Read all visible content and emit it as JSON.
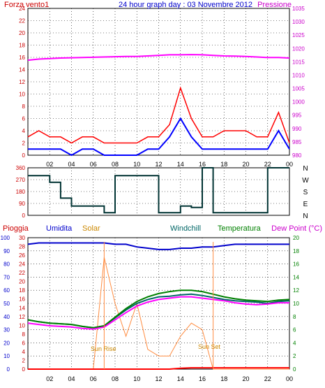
{
  "chart_data": [
    {
      "type": "line",
      "title": "24 hour graph day : 03 Novembre 2012",
      "left_axis_label": "Forza vento1",
      "right_axis_label": "Pressione",
      "left_ylim": [
        0,
        24
      ],
      "left_ticks": [
        "0",
        "2",
        "4",
        "6",
        "8",
        "10",
        "12",
        "14",
        "16",
        "18",
        "20",
        "22",
        "24"
      ],
      "right_ylim": [
        980,
        1035
      ],
      "right_ticks": [
        "980",
        "985",
        "990",
        "995",
        "1000",
        "1005",
        "1010",
        "1015",
        "1020",
        "1025",
        "1030",
        "1035"
      ],
      "x_ticks": [
        "02",
        "04",
        "06",
        "08",
        "10",
        "12",
        "14",
        "16",
        "18",
        "20",
        "22",
        "00"
      ],
      "grid": true,
      "colors": {
        "gust": "#ff0000",
        "wind": "#0000ff",
        "pressure": "#ff00ff",
        "left_axis": "#cc0000",
        "right_axis": "#cc00cc"
      },
      "series": [
        {
          "key": "pressure",
          "axis": "right",
          "values": [
            1015.6,
            1016.0,
            1016.2,
            1016.4,
            1016.5,
            1016.6,
            1016.7,
            1016.8,
            1016.9,
            1017.0,
            1017.0,
            1017.2,
            1017.4,
            1017.6,
            1017.6,
            1017.7,
            1017.6,
            1017.4,
            1017.2,
            1017.1,
            1017.0,
            1016.8,
            1016.6,
            1016.6,
            1016.4
          ]
        },
        {
          "key": "gust",
          "axis": "left",
          "values": [
            3,
            4,
            3,
            3,
            2,
            3,
            3,
            2,
            2,
            2,
            2,
            3,
            3,
            5,
            11,
            6,
            3,
            3,
            4,
            4,
            4,
            3,
            3,
            7,
            2
          ]
        },
        {
          "key": "wind",
          "axis": "left",
          "values": [
            1,
            1,
            1,
            1,
            0,
            1,
            1,
            0,
            0,
            0,
            0,
            1,
            1,
            3,
            6,
            3,
            1,
            1,
            1,
            1,
            1,
            1,
            1,
            4,
            1
          ]
        }
      ]
    },
    {
      "type": "line",
      "left_ylim": [
        0,
        360
      ],
      "left_ticks": [
        "0",
        "90",
        "180",
        "270",
        "360"
      ],
      "right_ticks": [
        "N",
        "W",
        "S",
        "E",
        "N"
      ],
      "x_ticks": [
        "02",
        "04",
        "06",
        "08",
        "10",
        "12",
        "14",
        "16",
        "18",
        "20",
        "22",
        "00"
      ],
      "grid": true,
      "colors": {
        "direction": "#003333",
        "left_axis": "#cc0000"
      },
      "series": [
        {
          "key": "direction",
          "values": [
            300,
            300,
            250,
            130,
            70,
            70,
            70,
            20,
            300,
            300,
            300,
            300,
            20,
            20,
            70,
            60,
            360,
            20,
            20,
            20,
            20,
            20,
            360,
            360,
            360
          ]
        }
      ]
    },
    {
      "type": "line",
      "legend": [
        "Pioggia",
        "Umidita",
        "Solar",
        "Windchill",
        "Temperatura",
        "Dew Point (°C)"
      ],
      "axis_umidita_ticks": [
        "0",
        "10",
        "20",
        "30",
        "40",
        "50",
        "60",
        "70",
        "80",
        "90",
        "100"
      ],
      "axis_pioggia_ticks": [
        "0",
        "2",
        "4",
        "6",
        "8",
        "10",
        "12",
        "14",
        "16",
        "18",
        "20",
        "22",
        "24",
        "26",
        "28",
        "30"
      ],
      "axis_temp_ticks": [
        "0",
        "2",
        "4",
        "6",
        "8",
        "10",
        "12",
        "14",
        "16",
        "18",
        "20"
      ],
      "temp_ylim": [
        0,
        20
      ],
      "x_ticks": [
        "02",
        "04",
        "06",
        "08",
        "10",
        "12",
        "14",
        "16",
        "18",
        "20",
        "22",
        "00"
      ],
      "annotations": [
        "Sun Rise",
        "Sun Set"
      ],
      "grid": true,
      "colors": {
        "rain": "#ff0000",
        "humidity": "#0000cc",
        "solar": "#ff8c40",
        "windchill": "#006666",
        "temperature": "#008000",
        "dewpoint": "#ff00ff",
        "umid_axis": "#0000cc",
        "pioggia_axis": "#cc0000",
        "temp_axis": "#008000"
      },
      "series": [
        {
          "key": "humidity",
          "values": [
            95,
            96,
            96,
            96,
            96,
            96,
            96,
            96,
            95,
            95,
            93,
            92,
            91,
            91,
            92,
            92,
            93,
            93,
            94,
            95,
            95,
            95,
            95,
            95,
            95
          ]
        },
        {
          "key": "windchill",
          "values": [
            7.5,
            7.2,
            7.0,
            6.9,
            6.8,
            6.5,
            6.3,
            6.6,
            7.8,
            9.0,
            10.0,
            10.6,
            11.0,
            11.1,
            11.3,
            11.4,
            11.2,
            10.9,
            10.6,
            10.4,
            10.3,
            10.2,
            10.0,
            10.3,
            10.4
          ]
        },
        {
          "key": "temperature",
          "values": [
            7.5,
            7.2,
            7.0,
            6.9,
            6.8,
            6.5,
            6.3,
            6.6,
            7.9,
            9.2,
            10.3,
            11.0,
            11.5,
            11.8,
            12.0,
            12.0,
            11.8,
            11.4,
            11.0,
            10.7,
            10.5,
            10.4,
            10.3,
            10.5,
            10.6
          ]
        },
        {
          "key": "dewpoint",
          "values": [
            7.0,
            6.8,
            6.6,
            6.5,
            6.4,
            6.2,
            6.1,
            6.4,
            7.5,
            8.6,
            9.6,
            10.2,
            10.6,
            10.8,
            11.0,
            11.0,
            10.8,
            10.6,
            10.4,
            10.1,
            9.9,
            9.8,
            9.9,
            10.1,
            10.1
          ]
        },
        {
          "key": "solar",
          "values": [
            0,
            0,
            0,
            0,
            0,
            0,
            0,
            17,
            10,
            5,
            10,
            3,
            2,
            2,
            5,
            7,
            6,
            0,
            0,
            0,
            0,
            0,
            0,
            0,
            0
          ]
        },
        {
          "key": "rain",
          "values": [
            0,
            0,
            0,
            0,
            0,
            0,
            0,
            0,
            0,
            0,
            0,
            0,
            0,
            0,
            0.2,
            0.3,
            0.3,
            0.3,
            0.3,
            0.3,
            0.3,
            0.3,
            0.3,
            0.3,
            0.3
          ]
        }
      ]
    }
  ]
}
